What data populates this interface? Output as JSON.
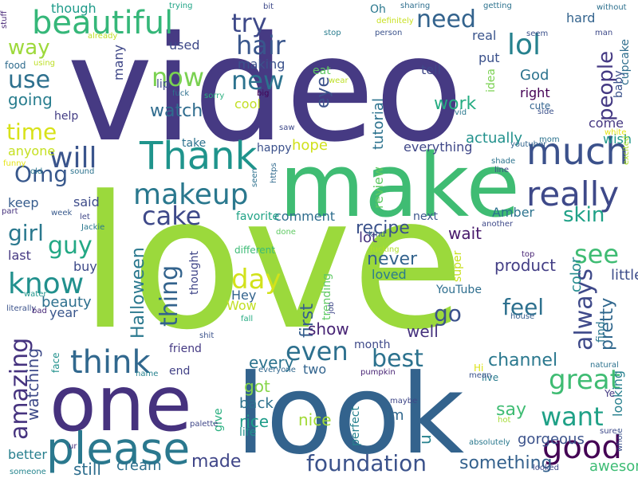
{
  "background": "#ffffff",
  "words": [
    {
      "text": "video",
      "color": "#463a83"
    },
    {
      "text": "love",
      "color": "#9bd93c"
    },
    {
      "text": "make",
      "color": "#3fbc73"
    },
    {
      "text": "look",
      "color": "#33638d"
    },
    {
      "text": "one",
      "color": "#46327e"
    },
    {
      "text": "please",
      "color": "#2a788e"
    },
    {
      "text": "Thank",
      "color": "#1f948c"
    },
    {
      "text": "much",
      "color": "#3b518b"
    },
    {
      "text": "makeup",
      "color": "#2a788e"
    },
    {
      "text": "really",
      "color": "#3e4989"
    },
    {
      "text": "beautiful",
      "color": "#35b779"
    },
    {
      "text": "think",
      "color": "#31688e"
    },
    {
      "text": "know",
      "color": "#21908d"
    },
    {
      "text": "good",
      "color": "#440154"
    },
    {
      "text": "great",
      "color": "#3fbc73"
    },
    {
      "text": "want",
      "color": "#1fa187"
    },
    {
      "text": "best",
      "color": "#2c728e"
    },
    {
      "text": "foundation",
      "color": "#3b528b"
    },
    {
      "text": "even",
      "color": "#2d708e"
    },
    {
      "text": "time",
      "color": "#d8e219"
    },
    {
      "text": "will",
      "color": "#3a548c"
    },
    {
      "text": "hair",
      "color": "#39568c"
    },
    {
      "text": "need",
      "color": "#33638d"
    },
    {
      "text": "lol",
      "color": "#26818e"
    },
    {
      "text": "way",
      "color": "#9dd93b"
    },
    {
      "text": "use",
      "color": "#2d708e"
    },
    {
      "text": "now",
      "color": "#7ad151"
    },
    {
      "text": "new",
      "color": "#2c728e"
    },
    {
      "text": "try",
      "color": "#3e4989"
    },
    {
      "text": "Omg",
      "color": "#38588c"
    },
    {
      "text": "girl",
      "color": "#2a788e"
    },
    {
      "text": "guy",
      "color": "#22a884"
    },
    {
      "text": "cake",
      "color": "#3e4989"
    },
    {
      "text": "see",
      "color": "#3fbc73"
    },
    {
      "text": "skin",
      "color": "#1fa187"
    },
    {
      "text": "people",
      "color": "#443983"
    },
    {
      "text": "thing",
      "color": "#33638d"
    },
    {
      "text": "day",
      "color": "#d2e21b"
    },
    {
      "text": "amazing",
      "color": "#46337f"
    },
    {
      "text": "always",
      "color": "#3e4989"
    },
    {
      "text": "feel",
      "color": "#2d708e"
    },
    {
      "text": "go",
      "color": "#3b528b"
    },
    {
      "text": "watching",
      "color": "#3e4a89"
    },
    {
      "text": "watch",
      "color": "#2f6c8e"
    },
    {
      "text": "going",
      "color": "#287d8e"
    },
    {
      "text": "eye",
      "color": "#3b528b"
    },
    {
      "text": "work",
      "color": "#25ac82"
    },
    {
      "text": "pretty",
      "color": "#31688e"
    },
    {
      "text": "Halloween",
      "color": "#2a788e"
    },
    {
      "text": "channel",
      "color": "#2a788e"
    },
    {
      "text": "say",
      "color": "#3fbc73"
    },
    {
      "text": "made",
      "color": "#404688"
    },
    {
      "text": "something",
      "color": "#34618d"
    },
    {
      "text": "still",
      "color": "#2e6e8e"
    },
    {
      "text": "better",
      "color": "#277f8e"
    },
    {
      "text": "hope",
      "color": "#d0e11c"
    },
    {
      "text": "tutorial",
      "color": "#2c728e"
    },
    {
      "text": "everything",
      "color": "#3f4788"
    },
    {
      "text": "recipe",
      "color": "#3b528b"
    },
    {
      "text": "first",
      "color": "#355e8d"
    },
    {
      "text": "never",
      "color": "#33638d"
    },
    {
      "text": "wait",
      "color": "#481a6c"
    },
    {
      "text": "lot",
      "color": "#46327e"
    },
    {
      "text": "every",
      "color": "#2c738e"
    },
    {
      "text": "got",
      "color": "#86d549"
    },
    {
      "text": "back",
      "color": "#2d718e"
    },
    {
      "text": "rice",
      "color": "#1e9c89"
    },
    {
      "text": "nice",
      "color": "#a2da37"
    },
    {
      "text": "im",
      "color": "#31688e"
    },
    {
      "text": "u",
      "color": "#26828e"
    },
    {
      "text": "gorgeous",
      "color": "#3b528b"
    },
    {
      "text": "two",
      "color": "#32648e"
    },
    {
      "text": "cream",
      "color": "#2d708e"
    },
    {
      "text": "awesome",
      "color": "#3dbc74"
    },
    {
      "text": "loved",
      "color": "#297b8e"
    },
    {
      "text": "Hey",
      "color": "#33638d"
    },
    {
      "text": "Wow",
      "color": "#c2df23"
    },
    {
      "text": "show",
      "color": "#482475"
    },
    {
      "text": "well",
      "color": "#46327e"
    },
    {
      "text": "product",
      "color": "#433e85"
    },
    {
      "text": "color",
      "color": "#238a8d"
    },
    {
      "text": "little",
      "color": "#3d4d8a"
    },
    {
      "text": "find",
      "color": "#2a768e"
    },
    {
      "text": "looking",
      "color": "#27808e"
    },
    {
      "text": "beauty",
      "color": "#2d708e"
    },
    {
      "text": "year",
      "color": "#39568c"
    },
    {
      "text": "anyone",
      "color": "#c5e021"
    },
    {
      "text": "keep",
      "color": "#365c8d"
    },
    {
      "text": "said",
      "color": "#3e4c8a"
    },
    {
      "text": "last",
      "color": "#453882"
    },
    {
      "text": "buy",
      "color": "#3e4a89"
    },
    {
      "text": "next",
      "color": "#3a548c"
    },
    {
      "text": "comment",
      "color": "#2e6d8e"
    },
    {
      "text": "favorite",
      "color": "#20a386"
    },
    {
      "text": "Amber",
      "color": "#2c738e"
    },
    {
      "text": "review",
      "color": "#5ec962"
    },
    {
      "text": "actually",
      "color": "#21918c"
    },
    {
      "text": "come",
      "color": "#453781"
    },
    {
      "text": "wish",
      "color": "#1f988b"
    },
    {
      "text": "baby",
      "color": "#3b528b"
    },
    {
      "text": "cupcake",
      "color": "#2e6e8e"
    },
    {
      "text": "hard",
      "color": "#33638d"
    },
    {
      "text": "God",
      "color": "#2c738e"
    },
    {
      "text": "right",
      "color": "#440154"
    },
    {
      "text": "cute",
      "color": "#32648e"
    },
    {
      "text": "idea",
      "color": "#7ad151"
    },
    {
      "text": "tell",
      "color": "#3f4889"
    },
    {
      "text": "eat",
      "color": "#5ec962"
    },
    {
      "text": "real",
      "color": "#3a548c"
    },
    {
      "text": "put",
      "color": "#3b518b"
    },
    {
      "text": "Oh",
      "color": "#2a788e"
    },
    {
      "text": "used",
      "color": "#3e4989"
    },
    {
      "text": "lip",
      "color": "#3e4c8a"
    },
    {
      "text": "making",
      "color": "#3b528b"
    },
    {
      "text": "many",
      "color": "#3f4788"
    },
    {
      "text": "cool",
      "color": "#c2df23"
    },
    {
      "text": "happy",
      "color": "#3b518b"
    },
    {
      "text": "take",
      "color": "#2c728e"
    },
    {
      "text": "help",
      "color": "#433d84"
    },
    {
      "text": "though",
      "color": "#1e9b8a"
    },
    {
      "text": "food",
      "color": "#2f6c8e"
    },
    {
      "text": "friend",
      "color": "#443983"
    },
    {
      "text": "end",
      "color": "#424186"
    },
    {
      "text": "face",
      "color": "#21918c"
    },
    {
      "text": "give",
      "color": "#29af7f"
    },
    {
      "text": "perfect",
      "color": "#26818e"
    },
    {
      "text": "thought",
      "color": "#404688"
    },
    {
      "text": "different",
      "color": "#3bbb75"
    },
    {
      "text": "trending",
      "color": "#5ec962"
    },
    {
      "text": "super",
      "color": "#c8e020"
    },
    {
      "text": "YouTube",
      "color": "#2e6e8e"
    },
    {
      "text": "life",
      "color": "#21918c"
    },
    {
      "text": "Ye",
      "color": "#443a83"
    },
    {
      "text": "live",
      "color": "#287c8e"
    },
    {
      "text": "Hi",
      "color": "#dde318"
    },
    {
      "text": "month",
      "color": "#3e4989"
    },
    {
      "text": "someone",
      "color": "#25858e"
    },
    {
      "text": "ur",
      "color": "#472d7b"
    },
    {
      "text": "stuff",
      "color": "#482777"
    },
    {
      "text": "funny",
      "color": "#e5e419"
    },
    {
      "text": "part",
      "color": "#46327e"
    },
    {
      "text": "old",
      "color": "#2a788e"
    },
    {
      "text": "sound",
      "color": "#2c738e"
    },
    {
      "text": "water",
      "color": "#1f958b"
    },
    {
      "text": "literally",
      "color": "#3b528b"
    },
    {
      "text": "bad",
      "color": "#482878"
    },
    {
      "text": "Jackie",
      "color": "#2a788e"
    },
    {
      "text": "week",
      "color": "#38598c"
    },
    {
      "text": "let",
      "color": "#3f4788"
    },
    {
      "text": "done",
      "color": "#5ec962"
    },
    {
      "text": "kind",
      "color": "#34618d"
    },
    {
      "text": "another",
      "color": "#3e4989"
    },
    {
      "text": "fucking",
      "color": "#ade028"
    },
    {
      "text": "top",
      "color": "#482475"
    },
    {
      "text": "line",
      "color": "#3f4788"
    },
    {
      "text": "seen",
      "color": "#2d718e"
    },
    {
      "text": "https",
      "color": "#306a8e"
    },
    {
      "text": "saw",
      "color": "#3e4989"
    },
    {
      "text": "big",
      "color": "#440154"
    },
    {
      "text": "sorry",
      "color": "#29af7f"
    },
    {
      "text": "fuck",
      "color": "#2d708e"
    },
    {
      "text": "using",
      "color": "#bddf26"
    },
    {
      "text": "already",
      "color": "#bddf26"
    },
    {
      "text": "trying",
      "color": "#20a486"
    },
    {
      "text": "bit",
      "color": "#3e4989"
    },
    {
      "text": "sharing",
      "color": "#2e6e8e"
    },
    {
      "text": "definitely",
      "color": "#c8e020"
    },
    {
      "text": "person",
      "color": "#3b528b"
    },
    {
      "text": "getting",
      "color": "#2c728e"
    },
    {
      "text": "seem",
      "color": "#3b518b"
    },
    {
      "text": "without",
      "color": "#2d708e"
    },
    {
      "text": "man",
      "color": "#3e4989"
    },
    {
      "text": "stop",
      "color": "#287c8e"
    },
    {
      "text": "wear",
      "color": "#bddf26"
    },
    {
      "text": "vid",
      "color": "#2a788e"
    },
    {
      "text": "side",
      "color": "#3b518b"
    },
    {
      "text": "white",
      "color": "#e5e419"
    },
    {
      "text": "mom",
      "color": "#2c738e"
    },
    {
      "text": "youtuber",
      "color": "#32648e"
    },
    {
      "text": "shade",
      "color": "#2c738e"
    },
    {
      "text": "excited",
      "color": "#ade028"
    },
    {
      "text": "fall",
      "color": "#25ac82"
    },
    {
      "text": "job",
      "color": "#3f4788"
    },
    {
      "text": "house",
      "color": "#355e8d"
    },
    {
      "text": "shit",
      "color": "#3b528b"
    },
    {
      "text": "everyone",
      "color": "#31688e"
    },
    {
      "text": "pumpkin",
      "color": "#482475"
    },
    {
      "text": "mean",
      "color": "#3b528b"
    },
    {
      "text": "natural",
      "color": "#2c728e"
    },
    {
      "text": "name",
      "color": "#26818e"
    },
    {
      "text": "palette",
      "color": "#3f4788"
    },
    {
      "text": "maybe",
      "color": "#3f4788"
    },
    {
      "text": "hot",
      "color": "#a5db36"
    },
    {
      "text": "sure",
      "color": "#3e4989"
    },
    {
      "text": "whole",
      "color": "#3b528b"
    },
    {
      "text": "absolutely",
      "color": "#2a788e"
    },
    {
      "text": "looked",
      "color": "#3e4989"
    },
    {
      "text": "long",
      "color": "#bddf26"
    },
    {
      "text": "gonna",
      "color": "#25ac82"
    }
  ]
}
